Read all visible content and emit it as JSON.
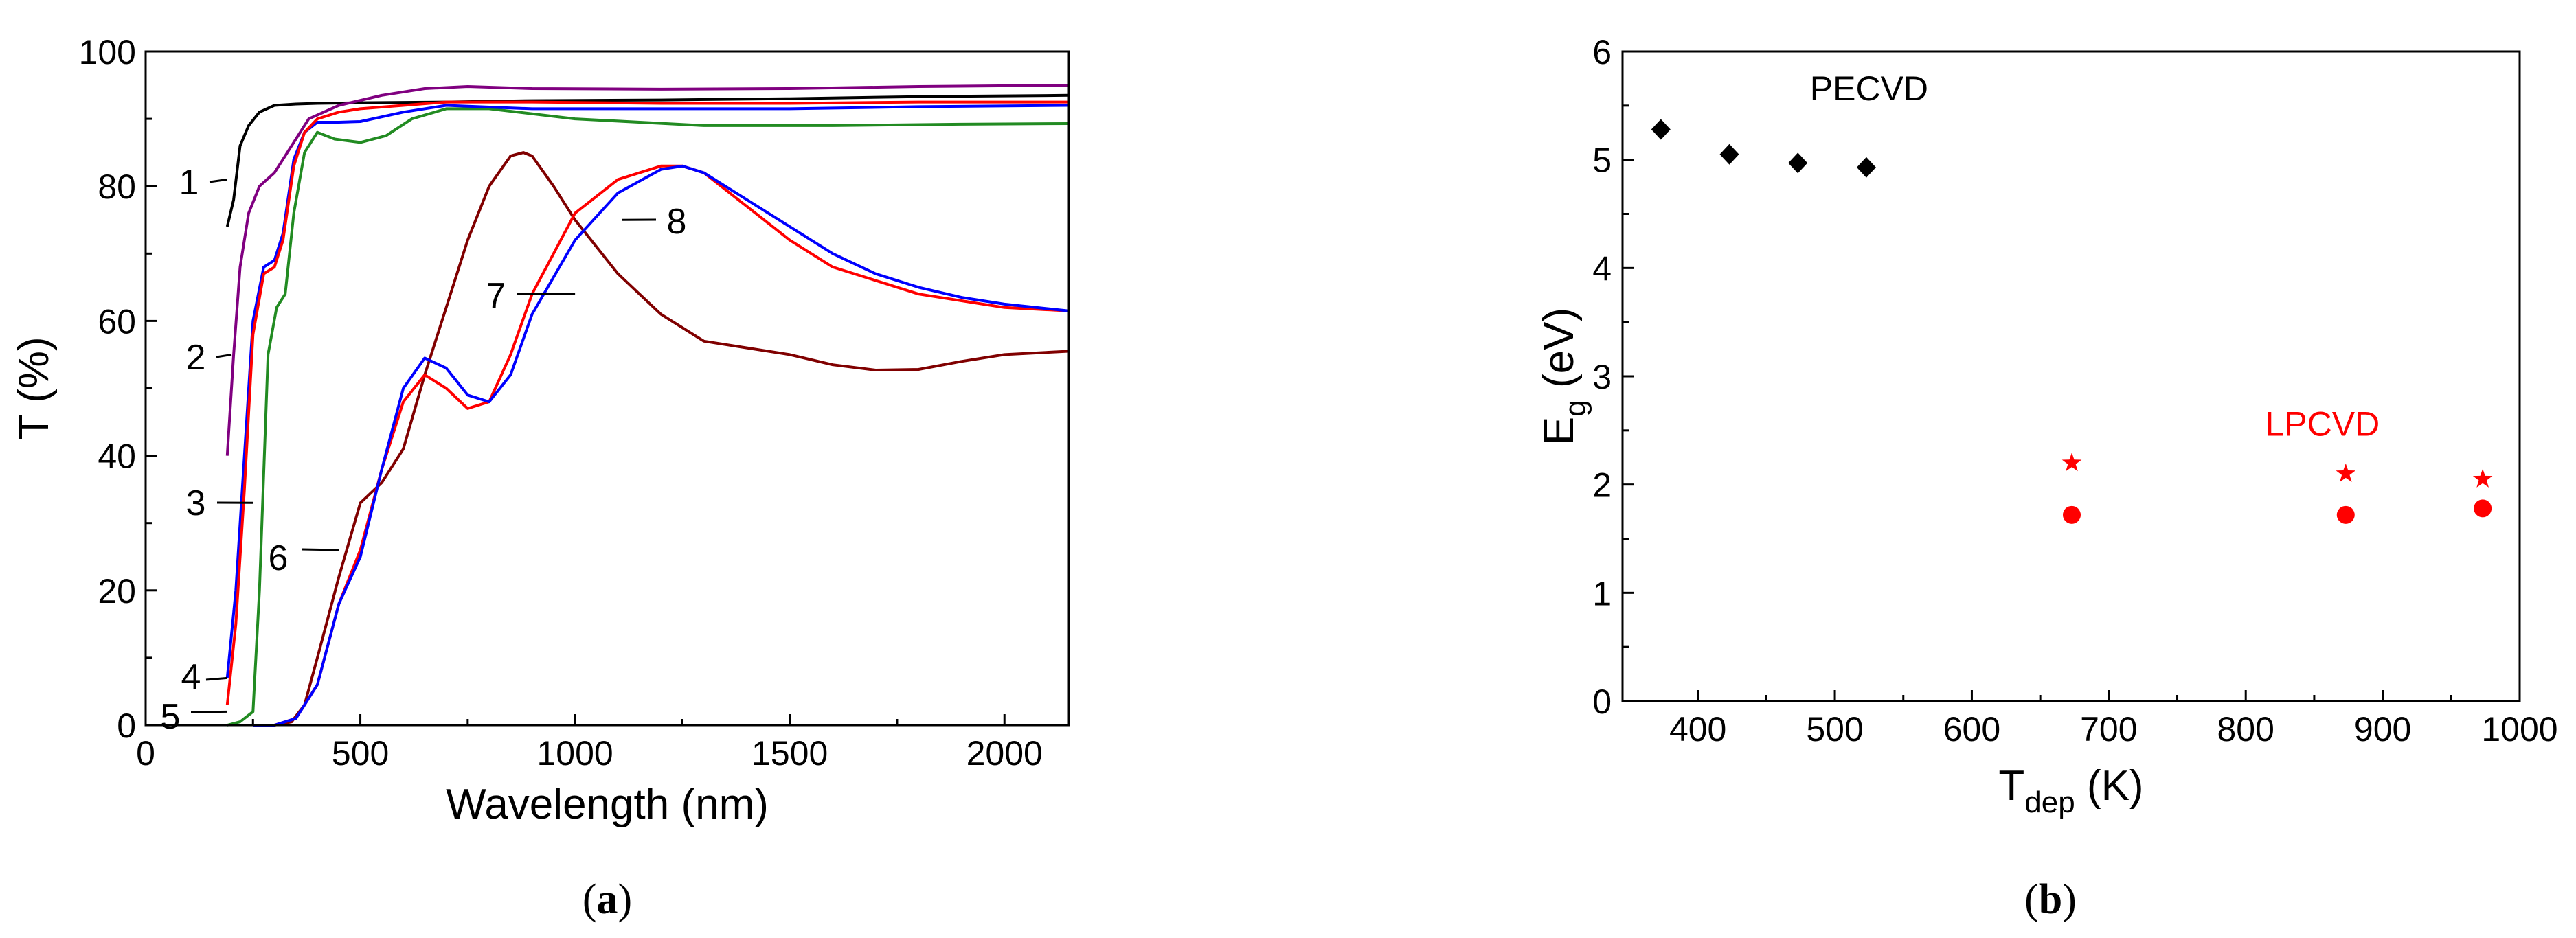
{
  "chart_data": [
    {
      "type": "line",
      "panel_label": "(a)",
      "xlabel": "Wavelength (nm)",
      "ylabel": "T (%)",
      "xlim": [
        0,
        2150
      ],
      "ylim": [
        0,
        100
      ],
      "xticks": [
        0,
        500,
        1000,
        1500,
        2000
      ],
      "yticks": [
        0,
        20,
        40,
        60,
        80,
        100
      ],
      "grid": false,
      "series": [
        {
          "name": "1",
          "color": "#000000",
          "x": [
            190,
            205,
            220,
            240,
            265,
            300,
            350,
            400,
            500,
            700,
            900,
            1200,
            1500,
            1800,
            2150
          ],
          "y": [
            74,
            78,
            86,
            89,
            91,
            92,
            92.2,
            92.3,
            92.4,
            92.5,
            92.7,
            92.8,
            93,
            93.3,
            93.5
          ]
        },
        {
          "name": "2",
          "color": "#800080",
          "x": [
            190,
            205,
            220,
            240,
            265,
            300,
            340,
            380,
            450,
            550,
            650,
            750,
            900,
            1200,
            1500,
            1800,
            2150
          ],
          "y": [
            40,
            55,
            68,
            76,
            80,
            82,
            86,
            90,
            92,
            93.5,
            94.5,
            94.8,
            94.5,
            94.4,
            94.5,
            94.8,
            95
          ]
        },
        {
          "name": "3",
          "color": "#228b22",
          "x": [
            190,
            220,
            250,
            265,
            285,
            305,
            325,
            345,
            370,
            400,
            440,
            500,
            560,
            620,
            700,
            800,
            1000,
            1300,
            1600,
            1900,
            2150
          ],
          "y": [
            0,
            0.5,
            2,
            20,
            55,
            62,
            64,
            76,
            85,
            88,
            87,
            86.5,
            87.5,
            90,
            91.5,
            91.5,
            90,
            89,
            89,
            89.2,
            89.3
          ]
        },
        {
          "name": "4",
          "color": "#0000ff",
          "x": [
            190,
            210,
            230,
            250,
            275,
            300,
            320,
            345,
            370,
            400,
            450,
            500,
            600,
            700,
            900,
            1200,
            1500,
            1800,
            2150
          ],
          "y": [
            7,
            20,
            40,
            60,
            68,
            69,
            73,
            84,
            88,
            89.5,
            89.5,
            89.6,
            91,
            92,
            91.5,
            91.5,
            91.5,
            91.8,
            92
          ]
        },
        {
          "name": "5",
          "color": "#ff0000",
          "x": [
            190,
            210,
            230,
            250,
            275,
            300,
            320,
            345,
            370,
            400,
            450,
            500,
            600,
            700,
            900,
            1200,
            1500,
            1800,
            2150
          ],
          "y": [
            3,
            15,
            35,
            58,
            67,
            68,
            72,
            83,
            88,
            90,
            91,
            91.5,
            92,
            92.5,
            92.5,
            92.3,
            92.3,
            92.5,
            92.5
          ]
        },
        {
          "name": "6",
          "color": "#800000",
          "x": [
            250,
            300,
            340,
            370,
            400,
            450,
            500,
            550,
            600,
            650,
            700,
            750,
            800,
            850,
            880,
            900,
            950,
            1000,
            1100,
            1200,
            1300,
            1400,
            1500,
            1600,
            1700,
            1800,
            1900,
            2000,
            2150
          ],
          "y": [
            0,
            0,
            0.5,
            3,
            10,
            22,
            33,
            36,
            41,
            52,
            62,
            72,
            80,
            84.5,
            85,
            84.5,
            80,
            75,
            67,
            61,
            57,
            56,
            55,
            53.5,
            52.7,
            52.8,
            54,
            55,
            55.5
          ]
        },
        {
          "name": "7",
          "color": "#ff0000",
          "x": [
            250,
            300,
            350,
            400,
            450,
            500,
            550,
            600,
            650,
            700,
            750,
            800,
            850,
            900,
            1000,
            1100,
            1200,
            1250,
            1300,
            1400,
            1500,
            1600,
            1700,
            1800,
            1900,
            2000,
            2150
          ],
          "y": [
            0,
            0,
            1,
            6,
            18,
            26,
            38,
            48,
            52,
            50,
            47,
            48,
            55,
            64,
            76,
            81,
            83,
            83,
            82,
            77,
            72,
            68,
            66,
            64,
            63,
            62,
            61.5
          ]
        },
        {
          "name": "8",
          "color": "#0000ff",
          "x": [
            250,
            300,
            350,
            400,
            450,
            500,
            550,
            600,
            650,
            700,
            750,
            800,
            850,
            900,
            1000,
            1100,
            1200,
            1250,
            1300,
            1400,
            1500,
            1600,
            1700,
            1800,
            1900,
            2000,
            2150
          ],
          "y": [
            0,
            0,
            1,
            6,
            18,
            25,
            38,
            50,
            54.5,
            53,
            49,
            48,
            52,
            61,
            72,
            79,
            82.5,
            83,
            82,
            78,
            74,
            70,
            67,
            65,
            63.5,
            62.5,
            61.5
          ]
        }
      ],
      "curve_labels": [
        {
          "text": "1",
          "series": "1",
          "at_x": 190,
          "at_y": 81
        },
        {
          "text": "2",
          "series": "2",
          "at_x": 200,
          "at_y": 55
        },
        {
          "text": "3",
          "series": "3",
          "at_x": 250,
          "at_y": 33
        },
        {
          "text": "4",
          "series": "4",
          "at_x": 190,
          "at_y": 7
        },
        {
          "text": "5",
          "series": "5",
          "at_x": 190,
          "at_y": 2
        },
        {
          "text": "6",
          "series": "6",
          "at_x": 450,
          "at_y": 26
        },
        {
          "text": "7",
          "series": "7",
          "at_x": 1000,
          "at_y": 64
        },
        {
          "text": "8",
          "series": "8",
          "at_x": 1110,
          "at_y": 75
        }
      ]
    },
    {
      "type": "scatter",
      "panel_label": "(b)",
      "xlabel": "T",
      "xlabel_sub": "dep",
      "xlabel_unit": " (K)",
      "ylabel": "E",
      "ylabel_sub": "g",
      "ylabel_unit": " (eV)",
      "xlim": [
        345,
        1000
      ],
      "ylim": [
        0,
        6
      ],
      "xticks": [
        400,
        500,
        600,
        700,
        800,
        900,
        1000
      ],
      "yticks": [
        0,
        1,
        2,
        3,
        4,
        5,
        6
      ],
      "grid": false,
      "annotations": [
        {
          "text": "PECVD",
          "color": "#000000",
          "x": 525,
          "y": 5.55
        },
        {
          "text": "LPCVD",
          "color": "#ff0000",
          "x": 856,
          "y": 2.45
        }
      ],
      "series": [
        {
          "marker": "diamond",
          "color": "#000000",
          "x": [
            373,
            423,
            473,
            523
          ],
          "y": [
            5.28,
            5.05,
            4.97,
            4.93
          ]
        },
        {
          "marker": "star",
          "color": "#ff0000",
          "x": [
            673,
            873,
            973
          ],
          "y": [
            2.2,
            2.1,
            2.05
          ]
        },
        {
          "marker": "circle",
          "color": "#ff0000",
          "x": [
            673,
            873,
            973
          ],
          "y": [
            1.72,
            1.72,
            1.78
          ]
        }
      ]
    }
  ]
}
